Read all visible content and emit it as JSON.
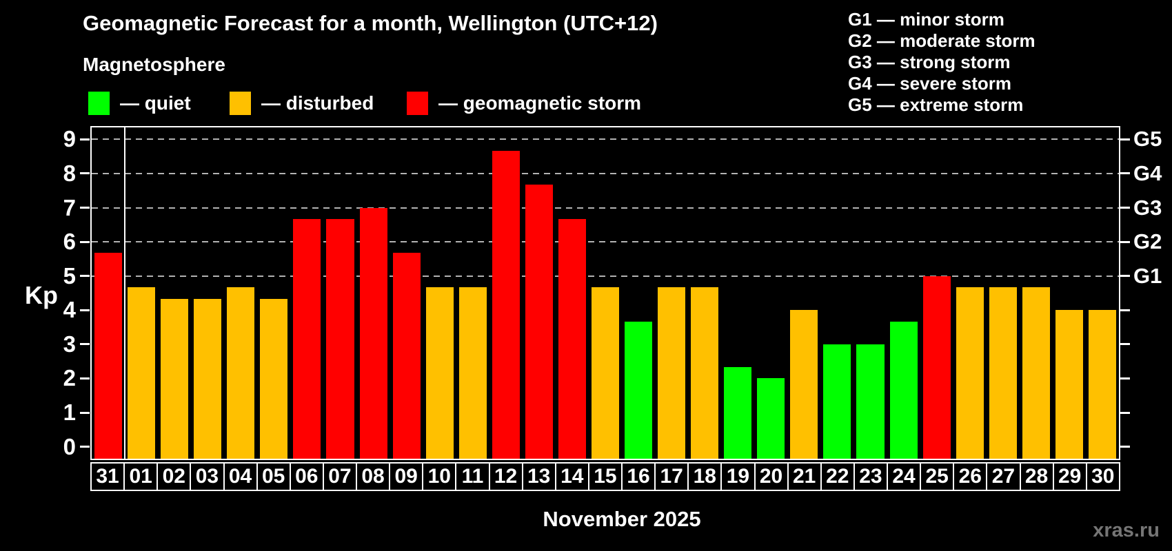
{
  "title": "Geomagnetic Forecast for a month, Wellington (UTC+12)",
  "subtitle": "Magnetosphere",
  "legend": {
    "items": [
      {
        "key": "quiet",
        "label": "— quiet",
        "color": "#00ff00"
      },
      {
        "key": "disturbed",
        "label": "— disturbed",
        "color": "#ffc000"
      },
      {
        "key": "storm",
        "label": "— geomagnetic storm",
        "color": "#ff0000"
      }
    ]
  },
  "g_legend": {
    "items": [
      "G1 — minor storm",
      "G2 — moderate storm",
      "G3 — strong storm",
      "G4 — severe storm",
      "G5 — extreme storm"
    ]
  },
  "footer": {
    "caption": "November 2025",
    "watermark": "xras.ru"
  },
  "chart_data": {
    "type": "bar",
    "title": "Geomagnetic Forecast for a month, Wellington (UTC+12)",
    "subtitle": "Magnetosphere",
    "ylabel": "Kp",
    "xlabel": "November 2025",
    "ylim": [
      0,
      9
    ],
    "yticks": [
      0,
      1,
      2,
      3,
      4,
      5,
      6,
      7,
      8,
      9
    ],
    "gridlines": [
      5,
      6,
      7,
      8,
      9
    ],
    "grid_style": "dashed",
    "right_axis_labels": {
      "5": "G1",
      "6": "G2",
      "7": "G3",
      "8": "G4",
      "9": "G5"
    },
    "legend_position": "top-left",
    "divider_after_index": 0,
    "categories": [
      "31",
      "01",
      "02",
      "03",
      "04",
      "05",
      "06",
      "07",
      "08",
      "09",
      "10",
      "11",
      "12",
      "13",
      "14",
      "15",
      "16",
      "17",
      "18",
      "19",
      "20",
      "21",
      "22",
      "23",
      "24",
      "25",
      "26",
      "27",
      "28",
      "29",
      "30"
    ],
    "series": [
      {
        "name": "Kp forecast",
        "values": [
          5.67,
          4.67,
          4.33,
          4.33,
          4.67,
          4.33,
          6.67,
          6.67,
          7,
          5.67,
          4.67,
          4.67,
          8.67,
          7.67,
          6.67,
          4.67,
          3.67,
          4.67,
          4.67,
          2.33,
          2,
          4,
          3,
          3,
          3.67,
          5,
          4.67,
          4.67,
          4.67,
          4,
          4
        ]
      }
    ],
    "statuses": [
      "storm",
      "disturbed",
      "disturbed",
      "disturbed",
      "disturbed",
      "disturbed",
      "storm",
      "storm",
      "storm",
      "storm",
      "disturbed",
      "disturbed",
      "storm",
      "storm",
      "storm",
      "disturbed",
      "quiet",
      "disturbed",
      "disturbed",
      "quiet",
      "quiet",
      "disturbed",
      "quiet",
      "quiet",
      "quiet",
      "storm",
      "disturbed",
      "disturbed",
      "disturbed",
      "disturbed",
      "disturbed"
    ],
    "colors": {
      "quiet": "#00ff00",
      "disturbed": "#ffc000",
      "storm": "#ff0000"
    },
    "background": "#000000",
    "text_color": "#ffffff"
  }
}
